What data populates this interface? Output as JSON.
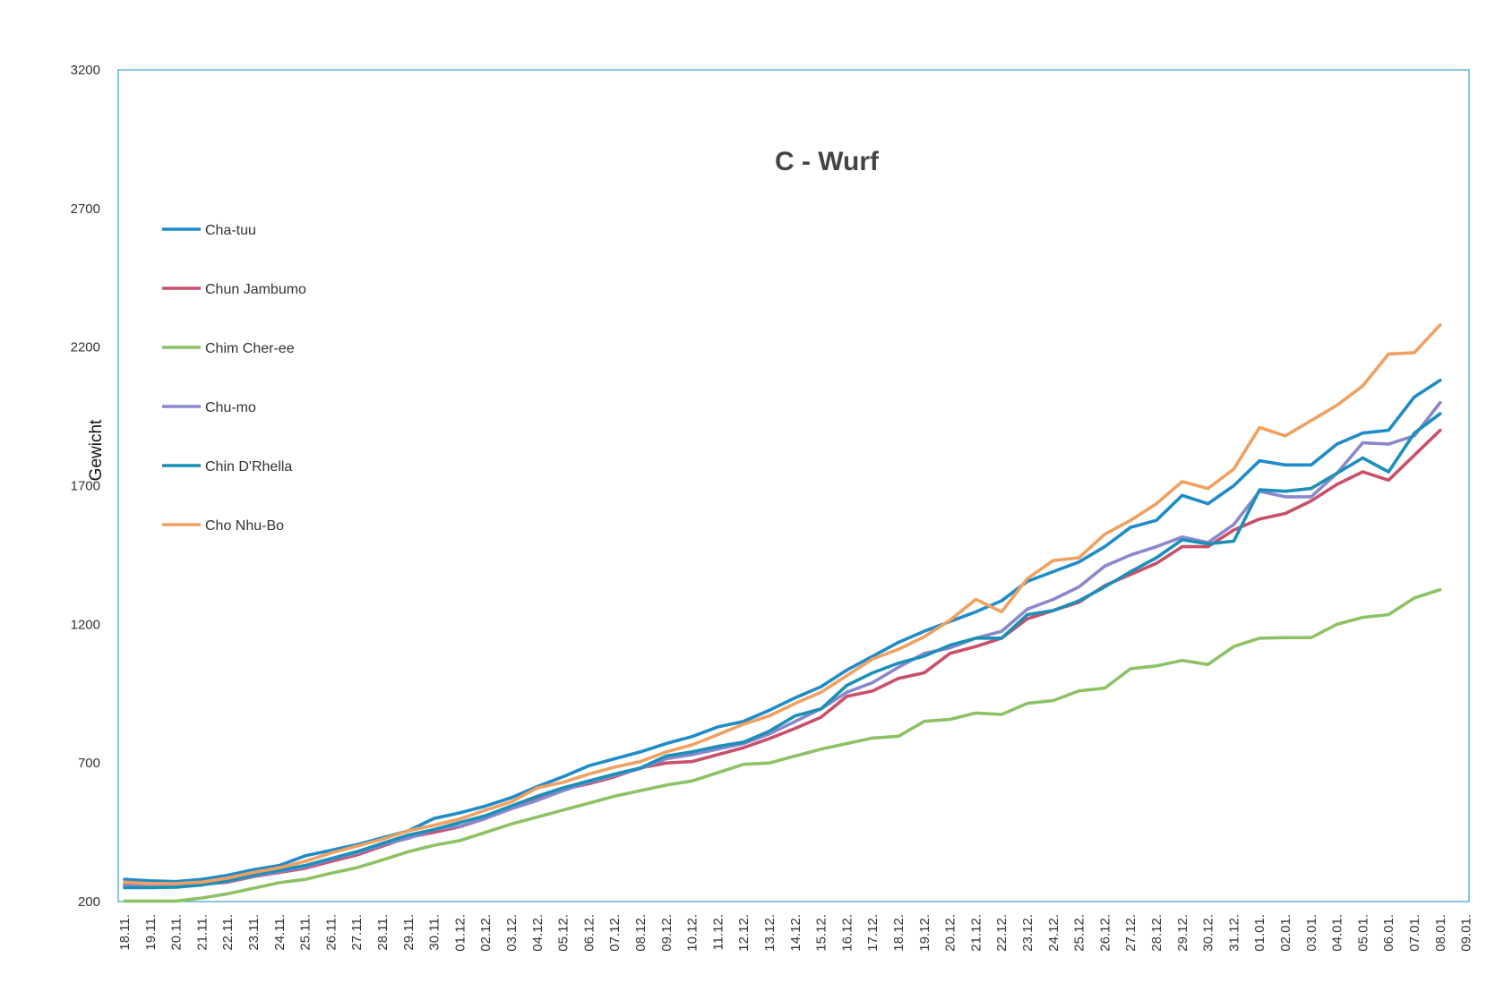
{
  "chart_data": {
    "type": "line",
    "title": "C - Wurf",
    "xlabel": "",
    "ylabel": "Gewicht",
    "ylim": [
      200,
      3200
    ],
    "yticks": [
      200,
      700,
      1200,
      1700,
      2200,
      2700,
      3200
    ],
    "grid": false,
    "legend_position": "left",
    "x": [
      "18.11.",
      "19.11.",
      "20.11.",
      "21.11.",
      "22.11.",
      "23.11.",
      "24.11.",
      "25.11.",
      "26.11.",
      "27.11.",
      "28.11.",
      "29.11.",
      "30.11.",
      "01.12.",
      "02.12.",
      "03.12.",
      "04.12.",
      "05.12.",
      "06.12.",
      "07.12.",
      "08.12.",
      "09.12.",
      "10.12.",
      "11.12.",
      "12.12.",
      "13.12.",
      "14.12.",
      "15.12.",
      "16.12.",
      "17.12.",
      "18.12.",
      "19.12.",
      "20.12.",
      "21.12.",
      "22.12.",
      "23.12.",
      "24.12.",
      "25.12.",
      "26.12.",
      "27.12.",
      "28.12.",
      "29.12.",
      "30.12.",
      "31.12.",
      "01.01.",
      "02.01.",
      "03.01.",
      "04.01.",
      "05.01.",
      "06.01.",
      "07.01.",
      "08.01.",
      "09.01."
    ],
    "series": [
      {
        "name": "Cha-tuu",
        "color": "#1f8bc8",
        "values": [
          280,
          275,
          272,
          280,
          295,
          315,
          330,
          365,
          385,
          405,
          430,
          455,
          500,
          520,
          545,
          575,
          615,
          650,
          690,
          715,
          740,
          770,
          795,
          830,
          850,
          890,
          935,
          975,
          1035,
          1085,
          1135,
          1175,
          1210,
          1245,
          1285,
          1355,
          1390,
          1425,
          1480,
          1550,
          1575,
          1665,
          1635,
          1700,
          1790,
          1775,
          1775,
          1850,
          1890,
          1900,
          2020,
          2080,
          null
        ]
      },
      {
        "name": "Chun Jambumo",
        "color": "#c8506a",
        "values": [
          262,
          258,
          258,
          262,
          270,
          290,
          305,
          320,
          345,
          368,
          400,
          432,
          450,
          470,
          500,
          540,
          575,
          605,
          625,
          650,
          682,
          700,
          705,
          730,
          755,
          788,
          825,
          865,
          940,
          960,
          1005,
          1025,
          1095,
          1120,
          1150,
          1220,
          1250,
          1280,
          1340,
          1380,
          1420,
          1480,
          1480,
          1540,
          1580,
          1600,
          1645,
          1705,
          1750,
          1720,
          1810,
          1900,
          null
        ]
      },
      {
        "name": "Chim Cher-ee",
        "color": "#8cc264",
        "values": [
          202,
          202,
          202,
          213,
          228,
          248,
          268,
          280,
          302,
          322,
          350,
          380,
          403,
          420,
          450,
          480,
          505,
          530,
          555,
          580,
          600,
          620,
          635,
          665,
          695,
          700,
          725,
          750,
          770,
          790,
          796,
          850,
          857,
          880,
          875,
          915,
          925,
          960,
          970,
          1040,
          1050,
          1070,
          1055,
          1120,
          1150,
          1152,
          1152,
          1200,
          1225,
          1235,
          1295,
          1325,
          null
        ]
      },
      {
        "name": "Chu-mo",
        "color": "#8b87cc",
        "values": [
          258,
          255,
          255,
          260,
          273,
          292,
          308,
          325,
          352,
          375,
          405,
          428,
          460,
          472,
          500,
          535,
          565,
          600,
          630,
          655,
          680,
          715,
          730,
          750,
          770,
          805,
          850,
          895,
          955,
          990,
          1045,
          1095,
          1115,
          1150,
          1175,
          1255,
          1290,
          1335,
          1410,
          1450,
          1480,
          1515,
          1495,
          1560,
          1680,
          1660,
          1660,
          1745,
          1855,
          1850,
          1880,
          2000,
          null
        ]
      },
      {
        "name": "Chin D'Rhella",
        "color": "#1a90b8",
        "values": [
          250,
          250,
          252,
          260,
          275,
          295,
          312,
          330,
          355,
          380,
          410,
          440,
          460,
          485,
          510,
          545,
          580,
          610,
          635,
          660,
          682,
          725,
          740,
          760,
          775,
          815,
          870,
          895,
          980,
          1025,
          1060,
          1085,
          1125,
          1150,
          1150,
          1235,
          1250,
          1285,
          1335,
          1390,
          1440,
          1505,
          1490,
          1500,
          1685,
          1680,
          1690,
          1745,
          1800,
          1750,
          1890,
          1960,
          null
        ]
      },
      {
        "name": "Cho Nhu-Bo",
        "color": "#f0a060",
        "values": [
          270,
          265,
          265,
          270,
          285,
          305,
          322,
          345,
          375,
          400,
          425,
          455,
          475,
          498,
          530,
          560,
          610,
          630,
          660,
          685,
          705,
          740,
          765,
          802,
          840,
          870,
          915,
          955,
          1015,
          1075,
          1110,
          1155,
          1215,
          1290,
          1245,
          1365,
          1430,
          1440,
          1525,
          1575,
          1635,
          1715,
          1690,
          1760,
          1910,
          1880,
          1935,
          1990,
          2060,
          2175,
          2180,
          2280,
          null
        ]
      }
    ]
  }
}
